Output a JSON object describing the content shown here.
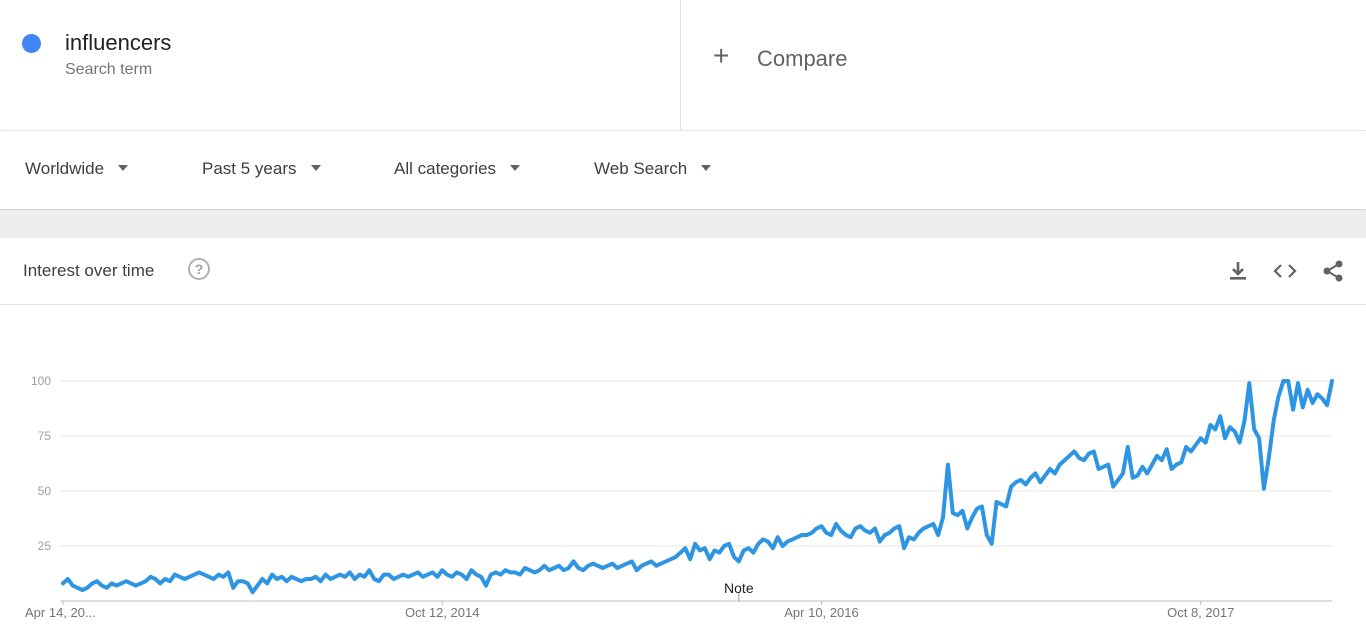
{
  "search_term": {
    "name": "influencers",
    "subtitle": "Search term",
    "color": "#4285f4"
  },
  "compare": {
    "plus": "+",
    "label": "Compare"
  },
  "filters": {
    "region": "Worldwide",
    "period": "Past 5 years",
    "category": "All categories",
    "property": "Web Search"
  },
  "section": {
    "title": "Interest over time",
    "help_glyph": "?",
    "icons": [
      "download-icon",
      "embed-icon",
      "share-icon"
    ]
  },
  "chart_data": {
    "type": "line",
    "title": "",
    "xlabel": "",
    "ylabel": "",
    "ylim": [
      0,
      100
    ],
    "yticks": [
      25,
      50,
      75,
      100
    ],
    "x_start": "Apr 14, 2013",
    "x_tick_labels": [
      "Apr 14, 20...",
      "Oct 12, 2014",
      "Apr 10, 2016",
      "Oct 8, 2017"
    ],
    "x_tick_weeks": [
      0,
      78,
      156,
      234
    ],
    "annotation": {
      "label": "Note",
      "week": 139
    },
    "line_color": "#2e95e3",
    "grid": true,
    "series": [
      {
        "values": [
          8,
          10,
          7,
          6,
          5,
          6,
          8,
          9,
          7,
          6,
          8,
          7,
          8,
          9,
          8,
          7,
          8,
          9,
          11,
          10,
          8,
          10,
          9,
          12,
          11,
          10,
          11,
          12,
          13,
          12,
          11,
          10,
          12,
          11,
          13,
          6,
          9,
          9,
          8,
          4,
          7,
          10,
          8,
          12,
          10,
          11,
          9,
          11,
          10,
          9,
          10,
          10,
          11,
          9,
          12,
          10,
          11,
          12,
          11,
          13,
          10,
          12,
          11,
          14,
          10,
          9,
          12,
          12,
          10,
          11,
          12,
          11,
          12,
          13,
          11,
          12,
          13,
          11,
          14,
          12,
          11,
          13,
          12,
          10,
          14,
          12,
          11,
          7,
          12,
          13,
          12,
          14,
          13,
          13,
          12,
          15,
          14,
          13,
          14,
          16,
          14,
          15,
          16,
          14,
          15,
          18,
          15,
          14,
          16,
          17,
          16,
          15,
          16,
          17,
          15,
          16,
          17,
          18,
          14,
          16,
          17,
          18,
          16,
          17,
          18,
          19,
          20,
          22,
          24,
          19,
          26,
          23,
          24,
          19,
          23,
          22,
          25,
          26,
          20,
          18,
          23,
          24,
          22,
          26,
          28,
          27,
          24,
          29,
          25,
          27,
          28,
          29,
          30,
          30,
          31,
          33,
          34,
          31,
          30,
          35,
          32,
          30,
          29,
          33,
          34,
          32,
          31,
          33,
          27,
          30,
          31,
          33,
          34,
          24,
          29,
          28,
          31,
          33,
          34,
          35,
          30,
          38,
          62,
          40,
          39,
          41,
          33,
          38,
          42,
          43,
          30,
          26,
          45,
          44,
          43,
          52,
          54,
          55,
          53,
          56,
          58,
          54,
          57,
          60,
          58,
          62,
          64,
          66,
          68,
          65,
          64,
          67,
          68,
          60,
          61,
          62,
          52,
          55,
          58,
          70,
          56,
          57,
          61,
          58,
          62,
          66,
          64,
          69,
          60,
          62,
          63,
          70,
          68,
          71,
          74,
          72,
          80,
          78,
          84,
          74,
          79,
          77,
          72,
          82,
          99,
          78,
          74,
          51,
          65,
          82,
          93,
          100,
          100,
          87,
          99,
          88,
          96,
          90,
          94,
          92,
          89,
          100
        ]
      }
    ]
  }
}
